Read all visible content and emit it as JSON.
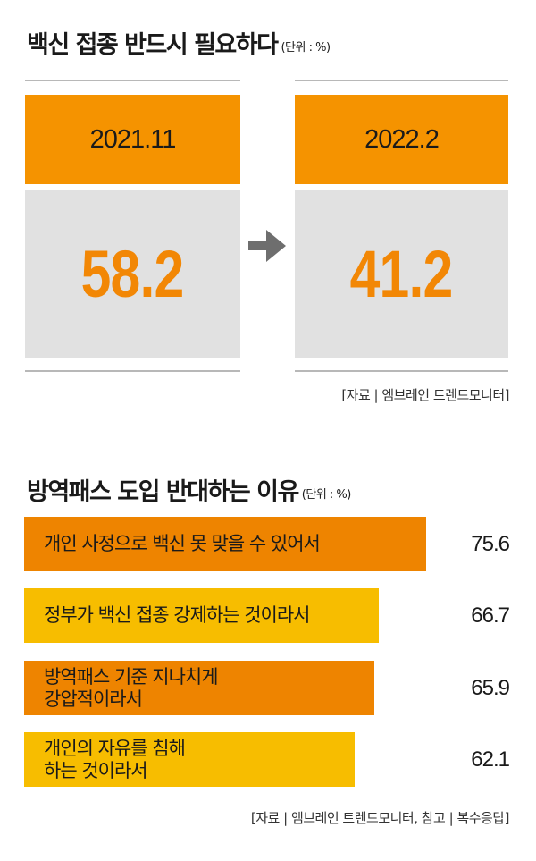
{
  "vaccine_section": {
    "title": "백신 접종 반드시 필요하다",
    "unit": "(단위 : %)",
    "before": {
      "date": "2021.11",
      "value": "58.2"
    },
    "after": {
      "date": "2022.2",
      "value": "41.2"
    },
    "source": "[자료 | 엠브레인 트렌드모니터]"
  },
  "reasons_section": {
    "title": "방역패스 도입 반대하는 이유",
    "unit": "(단위 : %)",
    "source": "[자료 | 엠브레인 트렌드모니터, 참고 | 복수응답]"
  },
  "chart_data": {
    "type": "bar",
    "orientation": "horizontal",
    "title": "방역패스 도입 반대하는 이유",
    "unit": "%",
    "categories": [
      "개인 사정으로 백신 못 맞을 수 있어서",
      "정부가 백신 접종 강제하는 것이라서",
      "방역패스 기준 지나치게\n강압적이라서",
      "개인의 자유를 침해\n하는 것이라서"
    ],
    "values": [
      75.6,
      66.7,
      65.9,
      62.1
    ],
    "value_labels": [
      "75.6",
      "66.7",
      "65.9",
      "62.1"
    ],
    "colors": [
      "#ee8400",
      "#f7bd00",
      "#ee8400",
      "#f7bd00"
    ]
  },
  "arrow_color": "#6e6e6e",
  "accent_color": "#f59300"
}
